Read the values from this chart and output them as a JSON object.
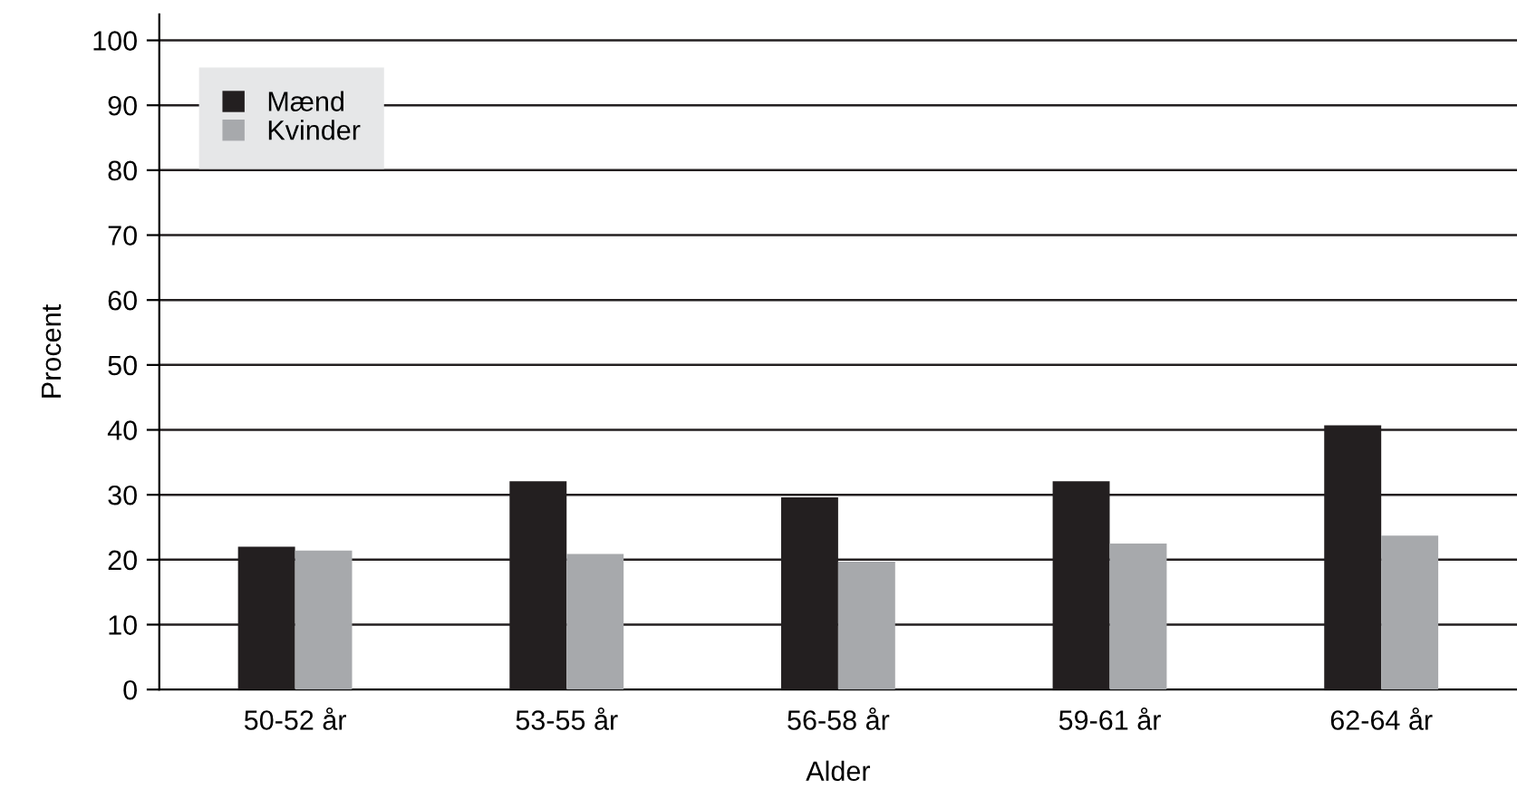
{
  "chart_data": {
    "type": "bar",
    "xlabel": "Alder",
    "ylabel": "Procent",
    "categories": [
      "50-52 år",
      "53-55 år",
      "56-58 år",
      "59-61 år",
      "62-64 år"
    ],
    "series": [
      {
        "name": "Mænd",
        "color": "#231f20",
        "values": [
          22.0,
          32.1,
          29.6,
          32.1,
          40.7
        ]
      },
      {
        "name": "Kvinder",
        "color": "#a7a9ac",
        "values": [
          21.4,
          20.9,
          19.7,
          22.5,
          23.7
        ]
      }
    ],
    "ylim": [
      0,
      104
    ],
    "yticks": [
      0,
      10,
      20,
      30,
      40,
      50,
      60,
      70,
      80,
      90,
      100
    ],
    "grid": "y",
    "legend": "top left"
  }
}
